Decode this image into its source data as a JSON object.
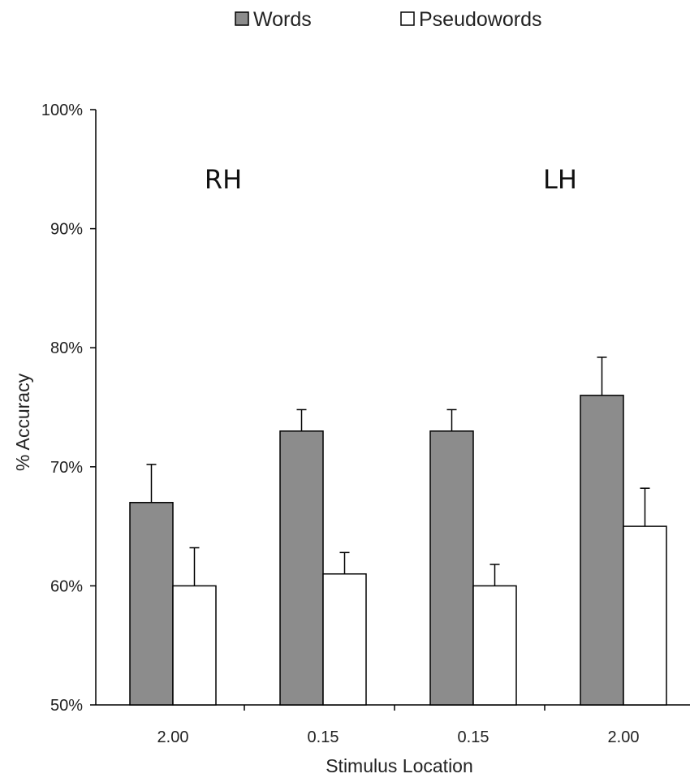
{
  "chart_data": {
    "type": "bar",
    "title": "",
    "xlabel": "Stimulus Location",
    "ylabel": "% Accuracy",
    "ylim": [
      50,
      100
    ],
    "y_ticks": [
      "50%",
      "60%",
      "70%",
      "80%",
      "90%",
      "100%"
    ],
    "y_tick_values": [
      50,
      60,
      70,
      80,
      90,
      100
    ],
    "categories": [
      "2.00",
      "0.15",
      "0.15",
      "2.00"
    ],
    "series": [
      {
        "name": "Words",
        "color": "#8c8c8c",
        "values": [
          67,
          73,
          73,
          76
        ],
        "error": [
          3.2,
          1.8,
          1.8,
          3.2
        ]
      },
      {
        "name": "Pseudowords",
        "color": "#ffffff",
        "values": [
          60,
          61,
          60,
          65
        ],
        "error": [
          3.2,
          1.8,
          1.8,
          3.2
        ]
      }
    ],
    "annotations": [
      "RH",
      "LH"
    ],
    "legend_position": "top-center",
    "grid": false
  }
}
